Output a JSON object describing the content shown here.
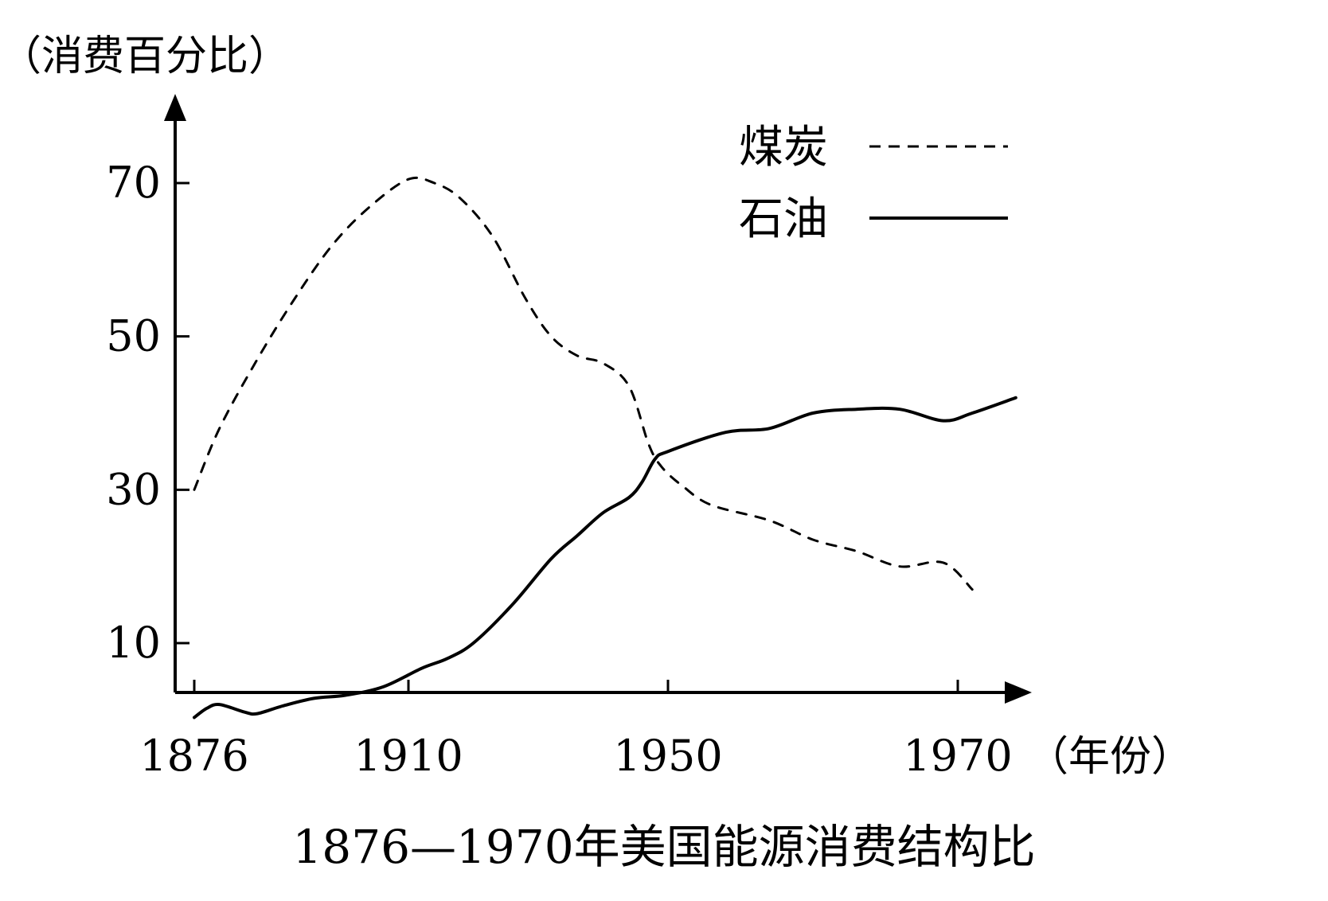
{
  "chart_data": {
    "type": "line",
    "title": "1876—1970年美国能源消费结构比",
    "ylabel": "（消费百分比）",
    "xlabel": "（年份）",
    "x_ticks": [
      "1876",
      "1910",
      "1950",
      "1970"
    ],
    "y_ticks": [
      "10",
      "30",
      "50",
      "70"
    ],
    "xlim": [
      1876,
      1970
    ],
    "ylim": [
      0,
      80
    ],
    "grid": false,
    "legend_position": "top-right",
    "series": [
      {
        "name": "煤炭",
        "style": "dashed",
        "color": "#000000",
        "x": [
          1876,
          1880,
          1886,
          1892,
          1898,
          1904,
          1910,
          1914,
          1918,
          1923,
          1928,
          1932,
          1936,
          1940,
          1944,
          1947,
          1949,
          1951,
          1953,
          1957,
          1960,
          1963,
          1966,
          1969,
          1971
        ],
        "y": [
          30,
          38,
          47,
          55,
          62,
          67,
          70.5,
          70,
          68,
          63,
          55,
          50,
          47.5,
          46.5,
          43.5,
          36,
          33,
          30.5,
          28,
          26,
          23.5,
          22,
          20,
          20.5,
          17
        ]
      },
      {
        "name": "石油",
        "style": "solid",
        "color": "#000000",
        "x": [
          1876,
          1878,
          1880,
          1884,
          1886,
          1890,
          1895,
          1900,
          1906,
          1912,
          1916,
          1920,
          1926,
          1932,
          1936,
          1940,
          1944,
          1946,
          1948,
          1950,
          1954,
          1957,
          1960,
          1963,
          1966,
          1969,
          1971,
          1974
        ],
        "y": [
          0.3,
          1.5,
          2,
          1,
          0.8,
          1.8,
          2.8,
          3.2,
          4.3,
          6.7,
          8,
          10,
          15,
          21,
          24,
          27,
          29,
          31,
          34,
          35,
          37.5,
          38,
          40,
          40.5,
          40.5,
          39,
          40,
          42
        ]
      }
    ]
  }
}
